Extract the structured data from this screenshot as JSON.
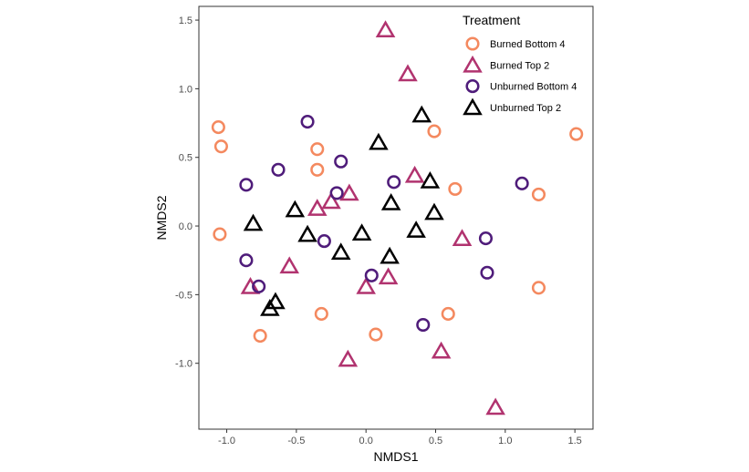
{
  "chart_data": {
    "type": "scatter",
    "xlabel": "NMDS1",
    "ylabel": "NMDS2",
    "xlim": [
      -1.2,
      1.63
    ],
    "ylim": [
      -1.48,
      1.6
    ],
    "x_ticks": [
      -1.0,
      -0.5,
      0.0,
      0.5,
      1.0,
      1.5
    ],
    "x_tick_labels": [
      "-1.0",
      "-0.5",
      "0.0",
      "0.5",
      "1.0",
      "1.5"
    ],
    "y_ticks": [
      -1.0,
      -0.5,
      0.0,
      0.5,
      1.0,
      1.5
    ],
    "y_tick_labels": [
      "-1.0",
      "-0.5",
      "0.0",
      "0.5",
      "1.0",
      "1.5"
    ],
    "grid": false,
    "legend": {
      "title": "Treatment",
      "position": "top-right"
    },
    "series": [
      {
        "name": "Burned Bottom 4",
        "marker": "circle",
        "color": "#F4895F",
        "points": [
          [
            -1.06,
            0.72
          ],
          [
            -1.04,
            0.58
          ],
          [
            -1.05,
            -0.06
          ],
          [
            -0.35,
            0.56
          ],
          [
            -0.35,
            0.41
          ],
          [
            0.49,
            0.69
          ],
          [
            1.51,
            0.67
          ],
          [
            0.64,
            0.27
          ],
          [
            1.24,
            0.23
          ],
          [
            1.24,
            -0.45
          ],
          [
            0.59,
            -0.64
          ],
          [
            -0.32,
            -0.64
          ],
          [
            -0.76,
            -0.8
          ],
          [
            0.07,
            -0.79
          ]
        ]
      },
      {
        "name": "Burned Top 2",
        "marker": "triangle",
        "color": "#B1336F",
        "points": [
          [
            0.14,
            1.43
          ],
          [
            0.3,
            1.11
          ],
          [
            0.35,
            0.37
          ],
          [
            -0.12,
            0.24
          ],
          [
            -0.25,
            0.18
          ],
          [
            -0.35,
            0.13
          ],
          [
            0.69,
            -0.09
          ],
          [
            -0.55,
            -0.29
          ],
          [
            0.16,
            -0.37
          ],
          [
            0.0,
            -0.44
          ],
          [
            -0.83,
            -0.44
          ],
          [
            0.54,
            -0.91
          ],
          [
            -0.13,
            -0.97
          ],
          [
            0.93,
            -1.32
          ]
        ]
      },
      {
        "name": "Unburned Bottom 4",
        "marker": "circle",
        "color": "#4F1C7A",
        "points": [
          [
            -0.42,
            0.76
          ],
          [
            -0.18,
            0.47
          ],
          [
            -0.63,
            0.41
          ],
          [
            -0.86,
            0.3
          ],
          [
            0.2,
            0.32
          ],
          [
            -0.21,
            0.24
          ],
          [
            1.12,
            0.31
          ],
          [
            0.86,
            -0.09
          ],
          [
            -0.3,
            -0.11
          ],
          [
            -0.86,
            -0.25
          ],
          [
            0.87,
            -0.34
          ],
          [
            0.04,
            -0.36
          ],
          [
            -0.77,
            -0.44
          ],
          [
            0.41,
            -0.72
          ]
        ]
      },
      {
        "name": "Unburned Top 2",
        "marker": "triangle",
        "color": "#000000",
        "points": [
          [
            0.4,
            0.81
          ],
          [
            0.09,
            0.61
          ],
          [
            0.46,
            0.33
          ],
          [
            0.18,
            0.17
          ],
          [
            -0.51,
            0.12
          ],
          [
            0.49,
            0.1
          ],
          [
            -0.81,
            0.02
          ],
          [
            -0.03,
            -0.05
          ],
          [
            -0.42,
            -0.06
          ],
          [
            0.36,
            -0.03
          ],
          [
            -0.18,
            -0.19
          ],
          [
            0.17,
            -0.22
          ],
          [
            -0.65,
            -0.55
          ],
          [
            -0.69,
            -0.6
          ]
        ]
      }
    ]
  }
}
